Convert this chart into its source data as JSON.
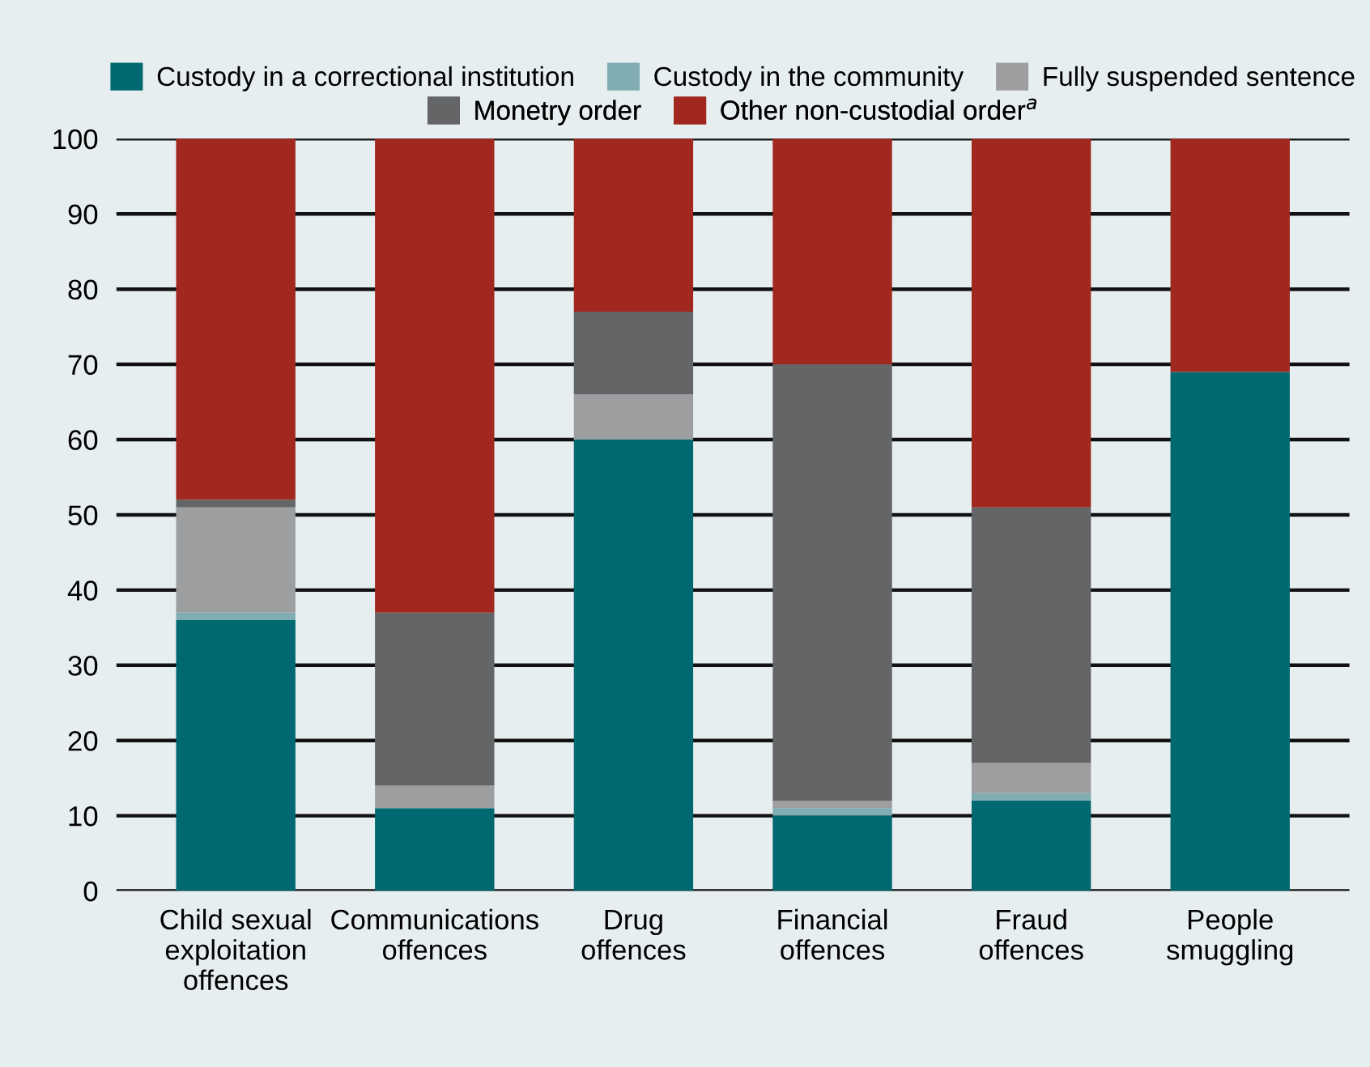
{
  "chart_data": {
    "type": "bar",
    "stacked": true,
    "categories": [
      "Child sexual\nexploitation\noffences",
      "Communications\noffences",
      "Drug\noffences",
      "Financial\noffences",
      "Fraud\noffences",
      "People\nsmuggling"
    ],
    "series": [
      {
        "name": "Custody in a correctional institution",
        "color": "#006870",
        "values": [
          36,
          11,
          60,
          10,
          12,
          69
        ]
      },
      {
        "name": "Custody in the community",
        "color": "#7fadb2",
        "values": [
          1,
          0,
          0,
          1,
          1,
          0
        ]
      },
      {
        "name": "Fully suspended sentence",
        "color": "#9d9ea0",
        "values": [
          14,
          3,
          6,
          1,
          4,
          0
        ]
      },
      {
        "name": "Monetry order",
        "color": "#646567",
        "values": [
          1,
          23,
          11,
          58,
          34,
          0
        ]
      },
      {
        "name": "Other non-custodial order$^{a}$",
        "color": "#a0281f",
        "values": [
          48,
          63,
          23,
          30,
          49,
          31
        ]
      }
    ],
    "ylim": [
      0,
      100
    ],
    "yticks": [
      0,
      10,
      20,
      30,
      40,
      50,
      60,
      70,
      80,
      90,
      100
    ],
    "grid": "y",
    "legend": "top"
  }
}
